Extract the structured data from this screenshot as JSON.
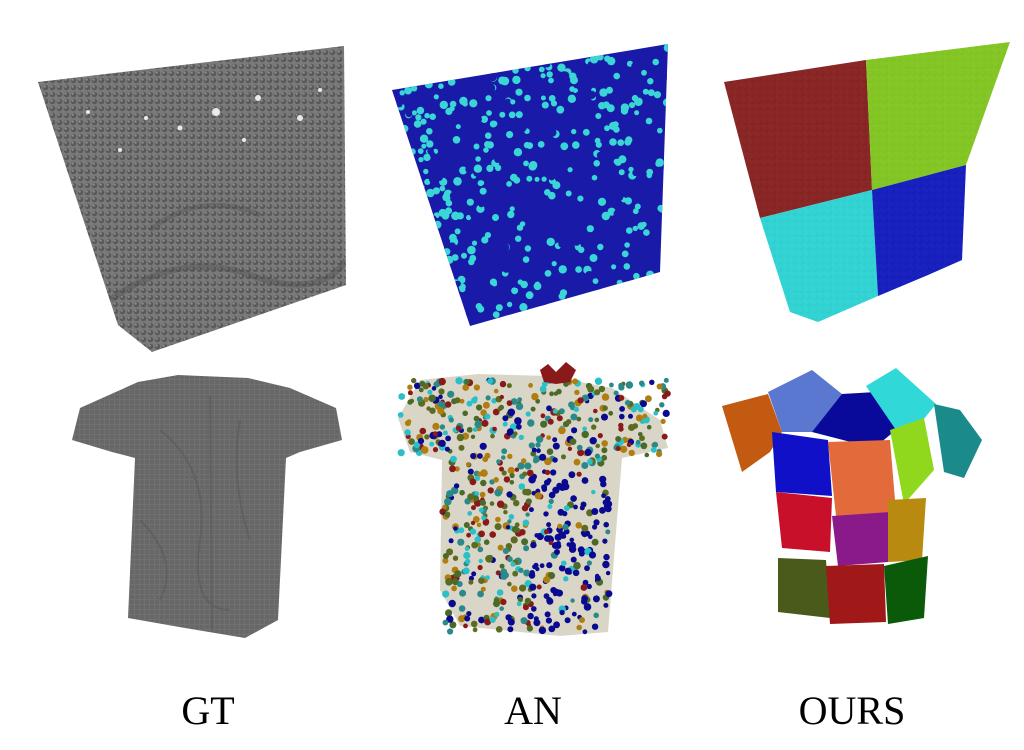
{
  "figure": {
    "columns": [
      {
        "key": "gt",
        "label": "GT"
      },
      {
        "key": "an",
        "label": "AN"
      },
      {
        "key": "ours",
        "label": "OURS"
      }
    ],
    "rows": [
      "flag-cloth",
      "t-shirt"
    ],
    "colors": {
      "gt_gray": "#6e6e6e",
      "an_flag": [
        "#1a1aa8",
        "#3ad6d6"
      ],
      "an_shirt": [
        "#b07d10",
        "#2bc0c8",
        "#0a0a90",
        "#5b6b20",
        "#8a1a1a",
        "#2a8a8a",
        "#4a6a2a"
      ],
      "ours_flag": [
        "#8c1c1c",
        "#86d11a",
        "#2ae0e0",
        "#0c16c8"
      ],
      "ours_shirt": [
        "#c25a12",
        "#5a78d0",
        "#0a0a9a",
        "#30d8d8",
        "#1a8a8a",
        "#1010c8",
        "#e36a3a",
        "#90d81e",
        "#c8102a",
        "#8a1a8a",
        "#b88a10",
        "#4a5a1a",
        "#a01818",
        "#0a5a0a"
      ]
    }
  }
}
